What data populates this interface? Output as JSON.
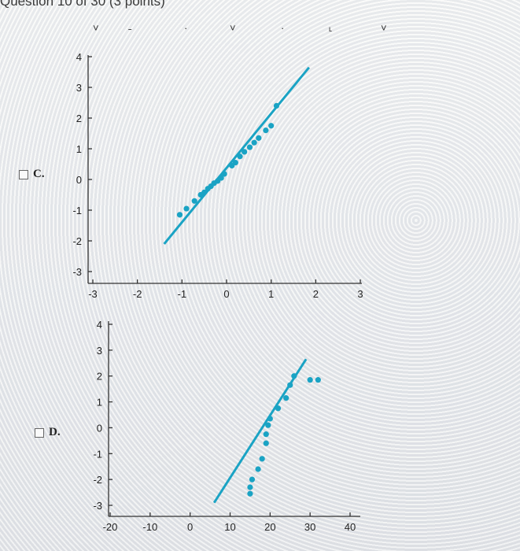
{
  "header": {
    "title": "Question 10 of 30 (3 points)"
  },
  "options": [
    {
      "letter": "C."
    },
    {
      "letter": "D."
    }
  ],
  "chart_data": [
    {
      "type": "scatter",
      "option": "C.",
      "x_ticks": [
        "-3",
        "-2",
        "-1",
        "0",
        "1",
        "2",
        "3"
      ],
      "y_ticks": [
        "4",
        "3",
        "2",
        "1",
        "0",
        "-1",
        "-2",
        "-3"
      ],
      "xlim": [
        -3,
        3
      ],
      "ylim": [
        -3,
        4
      ],
      "points": [
        {
          "x": -1.05,
          "y": -1.15
        },
        {
          "x": -0.9,
          "y": -0.95
        },
        {
          "x": -0.72,
          "y": -0.7
        },
        {
          "x": -0.58,
          "y": -0.5
        },
        {
          "x": -0.5,
          "y": -0.42
        },
        {
          "x": -0.42,
          "y": -0.3
        },
        {
          "x": -0.35,
          "y": -0.22
        },
        {
          "x": -0.28,
          "y": -0.12
        },
        {
          "x": -0.2,
          "y": -0.05
        },
        {
          "x": -0.12,
          "y": 0.05
        },
        {
          "x": -0.05,
          "y": 0.18
        },
        {
          "x": 0.12,
          "y": 0.45
        },
        {
          "x": 0.2,
          "y": 0.55
        },
        {
          "x": 0.3,
          "y": 0.75
        },
        {
          "x": 0.4,
          "y": 0.9
        },
        {
          "x": 0.52,
          "y": 1.05
        },
        {
          "x": 0.62,
          "y": 1.2
        },
        {
          "x": 0.72,
          "y": 1.35
        },
        {
          "x": 0.88,
          "y": 1.6
        },
        {
          "x": 1.0,
          "y": 1.75
        },
        {
          "x": 1.12,
          "y": 2.4
        }
      ],
      "fit_line": [
        {
          "x": -1.4,
          "y": -2.1
        },
        {
          "x": 1.85,
          "y": 3.65
        }
      ]
    },
    {
      "type": "scatter",
      "option": "D.",
      "x_ticks": [
        "-20",
        "-10",
        "0",
        "10",
        "20",
        "30",
        "40"
      ],
      "y_ticks": [
        "4",
        "3",
        "2",
        "1",
        "0",
        "-1",
        "-2",
        "-3"
      ],
      "xlim": [
        -20,
        40
      ],
      "ylim": [
        -3,
        4
      ],
      "points": [
        {
          "x": 15,
          "y": -2.55
        },
        {
          "x": 15,
          "y": -2.3
        },
        {
          "x": 15.5,
          "y": -2.0
        },
        {
          "x": 17,
          "y": -1.6
        },
        {
          "x": 18,
          "y": -1.2
        },
        {
          "x": 19,
          "y": -0.6
        },
        {
          "x": 19,
          "y": -0.25
        },
        {
          "x": 19.5,
          "y": 0.1
        },
        {
          "x": 20,
          "y": 0.35
        },
        {
          "x": 22,
          "y": 0.75
        },
        {
          "x": 24,
          "y": 1.15
        },
        {
          "x": 25,
          "y": 1.65
        },
        {
          "x": 26,
          "y": 2.0
        },
        {
          "x": 30,
          "y": 1.85
        },
        {
          "x": 32,
          "y": 1.85
        }
      ],
      "fit_line": [
        {
          "x": 6,
          "y": -2.9
        },
        {
          "x": 29,
          "y": 2.65
        }
      ]
    }
  ]
}
